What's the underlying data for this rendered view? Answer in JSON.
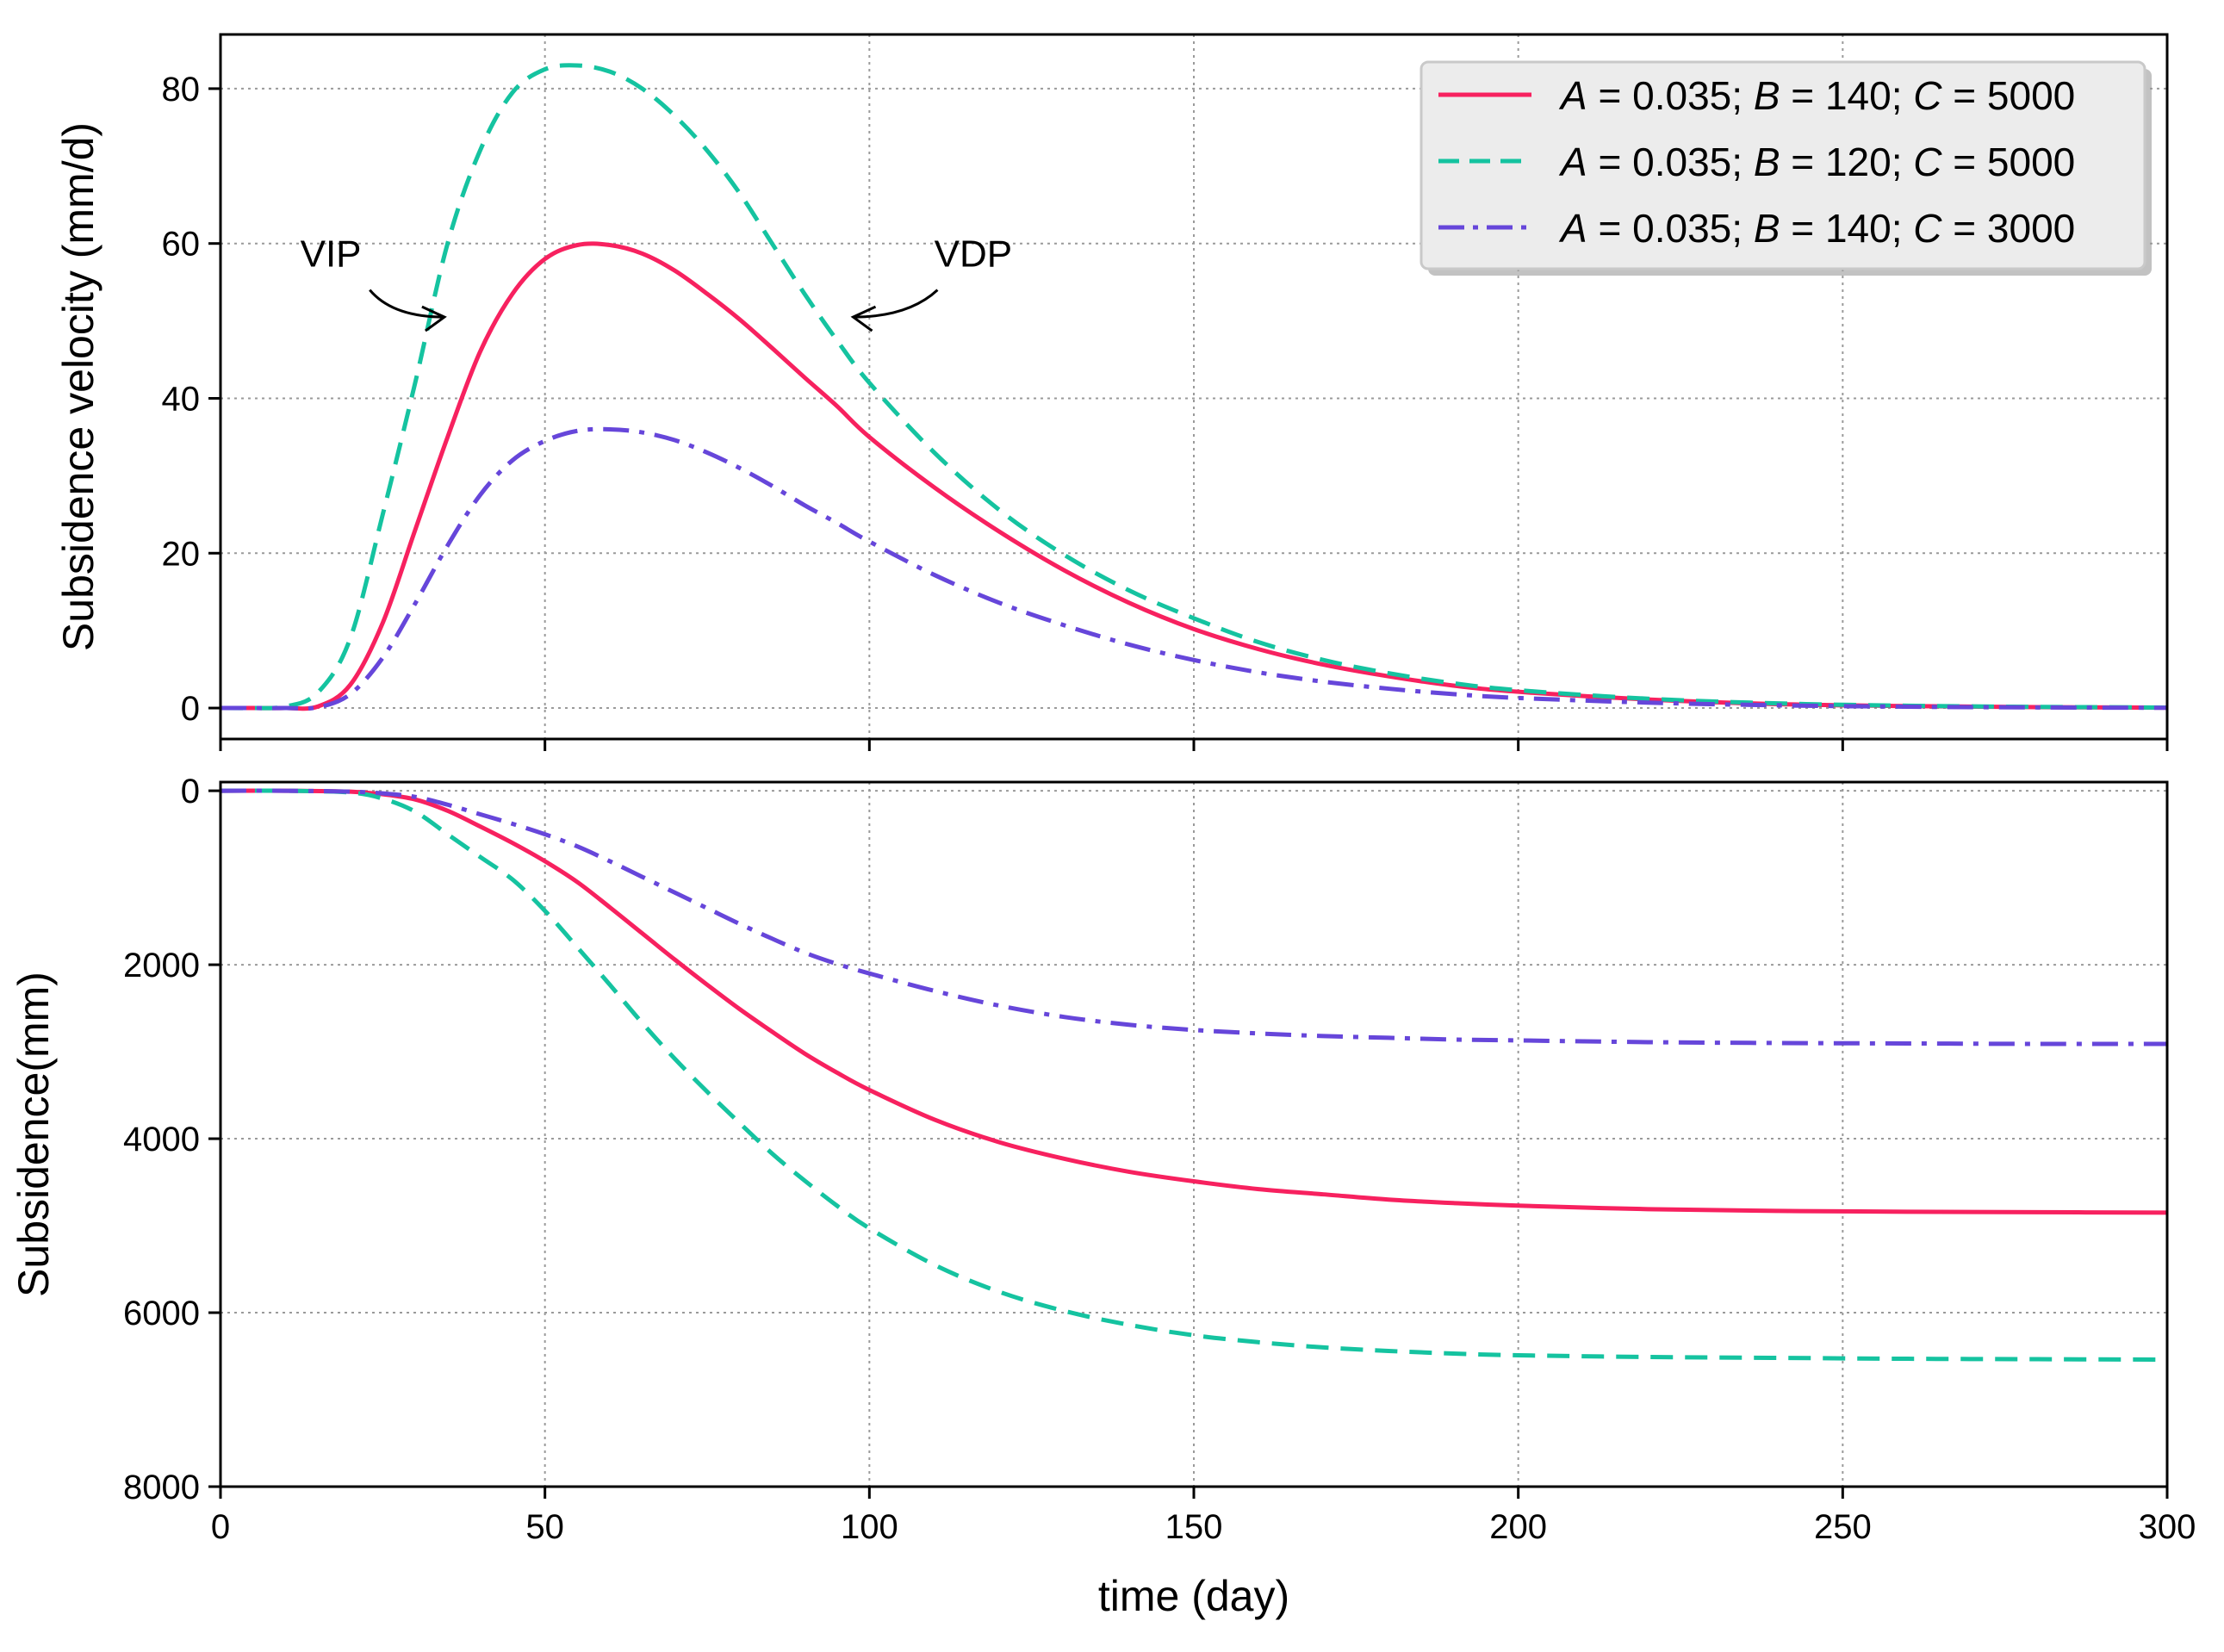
{
  "chart_data": {
    "type": "line",
    "xlabel": "time (day)",
    "x_ticks": [
      0,
      50,
      100,
      150,
      200,
      250,
      300
    ],
    "xlim": [
      0,
      300
    ],
    "legend": {
      "placement": "top-right of upper panel",
      "entries": [
        {
          "var_a": "A",
          "val_a": "0.035",
          "var_b": "B",
          "val_b": "140",
          "var_c": "C",
          "val_c": "5000"
        },
        {
          "var_a": "A",
          "val_a": "0.035",
          "var_b": "B",
          "val_b": "120",
          "var_c": "C",
          "val_c": "5000"
        },
        {
          "var_a": "A",
          "val_a": "0.035",
          "var_b": "B",
          "val_b": "140",
          "var_c": "C",
          "val_c": "3000"
        }
      ]
    },
    "series_meta": [
      {
        "name": "A = 0.035; B = 140; C = 5000",
        "A": 0.035,
        "B": 140,
        "C": 5000,
        "color": "#f7215f",
        "style": "solid"
      },
      {
        "name": "A = 0.035; B = 120; C = 5000",
        "A": 0.035,
        "B": 120,
        "C": 5000,
        "color": "#15c3a0",
        "style": "dashed"
      },
      {
        "name": "A = 0.035; B = 140; C = 3000",
        "A": 0.035,
        "B": 140,
        "C": 3000,
        "color": "#6646da",
        "style": "dashdot"
      }
    ],
    "panels": [
      {
        "id": "velocity",
        "ylabel": "Subsidence velocity (mm/d)",
        "ylim": [
          -4,
          87
        ],
        "y_ticks": [
          0,
          20,
          40,
          60,
          80
        ],
        "y_inverted": false,
        "x_tick_labels_shown": false,
        "annotations": [
          {
            "text": "VIP"
          },
          {
            "text": "VDP"
          }
        ],
        "series": [
          {
            "name": "A = 0.035; B = 140; C = 5000",
            "x": [
              0,
              5,
              10,
              15,
              20,
              25,
              30,
              35,
              40,
              45,
              50,
              55,
              60,
              65,
              70,
              75,
              80,
              85,
              90,
              95,
              100,
              110,
              120,
              130,
              140,
              150,
              160,
              170,
              180,
              190,
              200,
              220,
              240,
              260,
              280,
              300
            ],
            "y": [
              0,
              0,
              0,
              0.2,
              3,
              11,
              23,
              35,
              46,
              53.5,
              58,
              59.8,
              59.8,
              58.7,
              56.5,
              53.5,
              50.2,
              46.5,
              42.7,
              39,
              35,
              28.5,
              22.8,
              17.8,
              13.6,
              10.2,
              7.6,
              5.6,
              4.1,
              2.9,
              2.1,
              1.1,
              0.5,
              0.25,
              0.12,
              0.05
            ]
          },
          {
            "name": "A = 0.035; B = 120; C = 5000",
            "x": [
              0,
              5,
              10,
              15,
              20,
              25,
              30,
              35,
              40,
              45,
              50,
              55,
              60,
              65,
              70,
              75,
              80,
              85,
              90,
              95,
              100,
              110,
              120,
              130,
              140,
              150,
              160,
              170,
              180,
              190,
              200,
              220,
              240,
              260,
              280,
              300
            ],
            "y": [
              0,
              0,
              0.2,
              2,
              9,
              25,
              42,
              60,
              72,
              79.5,
              82.5,
              83,
              82.2,
              80,
              76.5,
              72,
              66.5,
              60,
              53.5,
              47.5,
              42,
              33,
              25.6,
              19.8,
              15.2,
              11.6,
              8.5,
              6.2,
              4.5,
              3.2,
              2.3,
              1.2,
              0.6,
              0.3,
              0.15,
              0.06
            ]
          },
          {
            "name": "A = 0.035; B = 140; C = 3000",
            "x": [
              0,
              5,
              10,
              15,
              20,
              25,
              30,
              35,
              40,
              45,
              50,
              55,
              60,
              65,
              70,
              75,
              80,
              85,
              90,
              95,
              100,
              110,
              120,
              130,
              140,
              150,
              160,
              170,
              180,
              190,
              200,
              220,
              240,
              260,
              280,
              300
            ],
            "y": [
              0,
              0,
              0,
              0.1,
              1.8,
              6.5,
              13.5,
              21,
              27.5,
              32,
              34.5,
              35.8,
              36,
              35.6,
              34.6,
              33,
              31,
              28.7,
              26.2,
              23.9,
              21.5,
              17.2,
              13.6,
              10.7,
              8.2,
              6.2,
              4.6,
              3.4,
              2.5,
              1.8,
              1.3,
              0.7,
              0.35,
              0.17,
              0.08,
              0.03
            ]
          }
        ]
      },
      {
        "id": "subsidence",
        "ylabel": "Subsidence(mm)",
        "ylim": [
          -100,
          8000
        ],
        "y_ticks": [
          0,
          2000,
          4000,
          6000,
          8000
        ],
        "y_inverted": true,
        "x_tick_labels_shown": true,
        "annotations": [],
        "series": [
          {
            "name": "A = 0.035; B = 140; C = 5000",
            "x": [
              0,
              10,
              20,
              25,
              30,
              35,
              40,
              45,
              50,
              55,
              60,
              65,
              70,
              75,
              80,
              85,
              90,
              95,
              100,
              110,
              120,
              130,
              140,
              150,
              160,
              170,
              180,
              190,
              200,
              220,
              240,
              260,
              280,
              300
            ],
            "y": [
              0,
              0,
              10,
              40,
              100,
              230,
              410,
              600,
              810,
              1050,
              1340,
              1640,
              1940,
              2230,
              2510,
              2770,
              3020,
              3240,
              3440,
              3780,
              4040,
              4230,
              4380,
              4490,
              4580,
              4640,
              4700,
              4740,
              4770,
              4810,
              4830,
              4840,
              4845,
              4850
            ]
          },
          {
            "name": "A = 0.035; B = 120; C = 5000",
            "x": [
              0,
              10,
              20,
              25,
              30,
              35,
              40,
              45,
              50,
              55,
              60,
              65,
              70,
              75,
              80,
              85,
              90,
              95,
              100,
              110,
              120,
              130,
              140,
              150,
              160,
              170,
              180,
              190,
              200,
              220,
              240,
              260,
              280,
              300
            ],
            "y": [
              0,
              0,
              20,
              90,
              240,
              500,
              760,
              1020,
              1380,
              1800,
              2230,
              2670,
              3080,
              3460,
              3820,
              4170,
              4480,
              4770,
              5030,
              5450,
              5760,
              5980,
              6140,
              6260,
              6340,
              6400,
              6440,
              6470,
              6490,
              6510,
              6520,
              6530,
              6535,
              6540
            ]
          },
          {
            "name": "A = 0.035; B = 140; C = 3000",
            "x": [
              0,
              10,
              20,
              25,
              30,
              35,
              40,
              45,
              50,
              55,
              60,
              65,
              70,
              75,
              80,
              85,
              90,
              95,
              100,
              110,
              120,
              130,
              140,
              150,
              160,
              170,
              180,
              190,
              200,
              220,
              240,
              260,
              280,
              300
            ],
            "y": [
              0,
              0,
              10,
              30,
              70,
              160,
              270,
              380,
              500,
              640,
              810,
              990,
              1170,
              1350,
              1530,
              1700,
              1860,
              1990,
              2100,
              2300,
              2470,
              2600,
              2690,
              2750,
              2790,
              2820,
              2840,
              2860,
              2870,
              2890,
              2900,
              2905,
              2910,
              2910
            ]
          }
        ]
      }
    ]
  }
}
